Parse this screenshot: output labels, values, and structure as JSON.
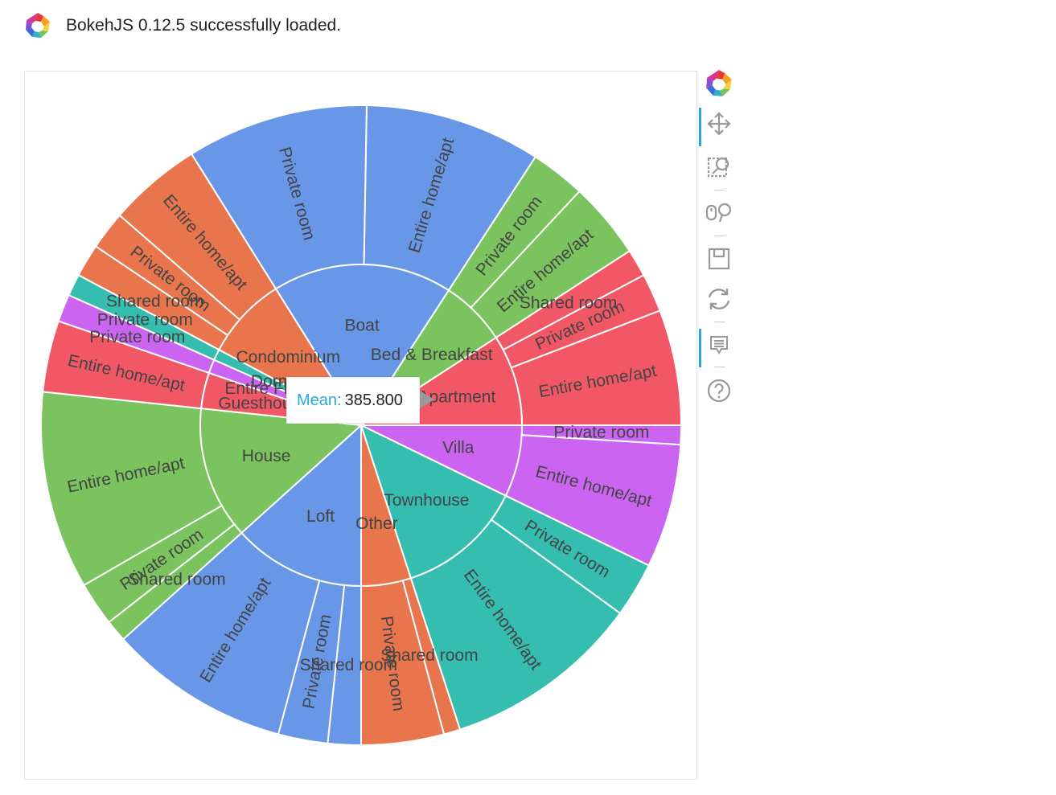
{
  "header": {
    "message": "BokehJS 0.12.5 successfully loaded."
  },
  "tooltip": {
    "key": "Mean:",
    "value": "385.800"
  },
  "toolbar": {
    "tools": [
      {
        "name": "bokeh-logo-icon",
        "active": false
      },
      {
        "name": "pan-icon",
        "active": true
      },
      {
        "name": "box-zoom-icon",
        "active": false
      },
      {
        "name": "wheel-zoom-icon",
        "active": false
      },
      {
        "name": "save-icon",
        "active": false
      },
      {
        "name": "reset-icon",
        "active": false
      },
      {
        "name": "hover-icon",
        "active": true
      },
      {
        "name": "help-icon",
        "active": false
      }
    ]
  },
  "colors": {
    "Boat": "#6897E8",
    "Bed & Breakfast": "#7BC35F",
    "Apartment": "#F25766",
    "Villa": "#CB64F0",
    "Townhouse": "#35BDB0",
    "Other": "#E8754C",
    "Loft": "#6897E8",
    "House": "#7BC35F",
    "Guesthouse": "#F25766",
    "Entire Floor": "#CB64F0",
    "Dorm": "#35BDB0",
    "Condominium": "#E8754C"
  },
  "chart_data": {
    "type": "sunburst",
    "groups": [
      {
        "name": "Boat",
        "start": 57,
        "end": 122,
        "children": [
          {
            "label": "Entire home/apt",
            "start": 57,
            "end": 89
          },
          {
            "label": "Private room",
            "start": 89,
            "end": 122
          }
        ]
      },
      {
        "name": "Bed & Breakfast",
        "start": 33,
        "end": 57,
        "children": [
          {
            "label": "Entire home/apt",
            "start": 33,
            "end": 47
          },
          {
            "label": "Private room",
            "start": 47,
            "end": 57
          }
        ]
      },
      {
        "name": "Apartment",
        "start": 0,
        "end": 33,
        "children": [
          {
            "label": "Entire home/apt",
            "start": 0,
            "end": 21
          },
          {
            "label": "Private room",
            "start": 21,
            "end": 28
          },
          {
            "label": "Shared room",
            "start": 28,
            "end": 33
          }
        ]
      },
      {
        "name": "Villa",
        "start": -26,
        "end": 0,
        "children": [
          {
            "label": "Private room",
            "start": -3.5,
            "end": 0
          },
          {
            "label": "Entire home/apt",
            "start": -26,
            "end": -3.5
          }
        ]
      },
      {
        "name": "Townhouse",
        "start": -72,
        "end": -26,
        "children": [
          {
            "label": "Private room",
            "start": -36,
            "end": -26
          },
          {
            "label": "Entire home/apt",
            "start": -72,
            "end": -36
          }
        ]
      },
      {
        "name": "Other",
        "start": -90,
        "end": -72,
        "children": [
          {
            "label": "Shared room",
            "start": -75,
            "end": -72
          },
          {
            "label": "Private room",
            "start": -90,
            "end": -75
          }
        ]
      },
      {
        "name": "Loft",
        "start": -138,
        "end": -90,
        "children": [
          {
            "label": "Shared room",
            "start": -96,
            "end": -90
          },
          {
            "label": "Private room",
            "start": -105,
            "end": -96
          },
          {
            "label": "Entire home/apt",
            "start": -138,
            "end": -105
          }
        ]
      },
      {
        "name": "House",
        "start": -186,
        "end": -138,
        "children": [
          {
            "label": "Shared room",
            "start": -142,
            "end": -138
          },
          {
            "label": "Private room",
            "start": -150,
            "end": -142
          },
          {
            "label": "Entire home/apt",
            "start": -186,
            "end": -150
          }
        ]
      },
      {
        "name": "Guesthouse",
        "start": 161,
        "end": 174,
        "children": [
          {
            "label": "Entire home/apt",
            "start": 161,
            "end": 174
          }
        ]
      },
      {
        "name": "Entire Floor",
        "start": 156,
        "end": 161,
        "children": [
          {
            "label": "Private room",
            "start": 156,
            "end": 161
          }
        ]
      },
      {
        "name": "Dorm",
        "start": 152,
        "end": 156,
        "children": [
          {
            "label": "Private room",
            "start": 152,
            "end": 156
          }
        ]
      },
      {
        "name": "Condominium",
        "start": 122,
        "end": 152,
        "children": [
          {
            "label": "Entire home/apt",
            "start": 122,
            "end": 139
          },
          {
            "label": "Private room",
            "start": 139,
            "end": 146
          },
          {
            "label": "Shared room",
            "start": 146,
            "end": 152
          }
        ]
      }
    ]
  }
}
